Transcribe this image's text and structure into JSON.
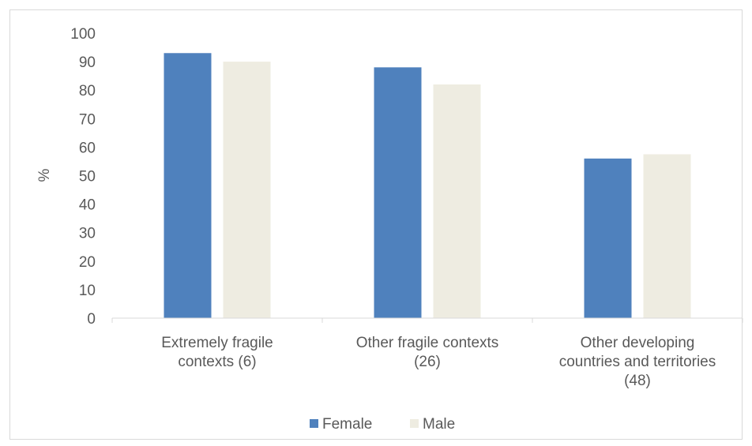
{
  "chart_data": {
    "type": "bar",
    "categories": [
      [
        "Extremely fragile",
        "contexts (6)"
      ],
      [
        "Other fragile contexts",
        "(26)"
      ],
      [
        "Other developing",
        "countries and territories",
        "(48)"
      ]
    ],
    "series": [
      {
        "name": "Female",
        "values": [
          93,
          88,
          56
        ],
        "color": "#4f81bd"
      },
      {
        "name": "Male",
        "values": [
          90,
          82,
          57.5
        ],
        "color": "#eeece1"
      }
    ],
    "ylabel": "%",
    "ylim": [
      0,
      100
    ],
    "yticks": [
      "0",
      "10",
      "20",
      "30",
      "40",
      "50",
      "60",
      "70",
      "80",
      "90",
      "100"
    ],
    "grid": false,
    "legend": "bottom-center"
  }
}
